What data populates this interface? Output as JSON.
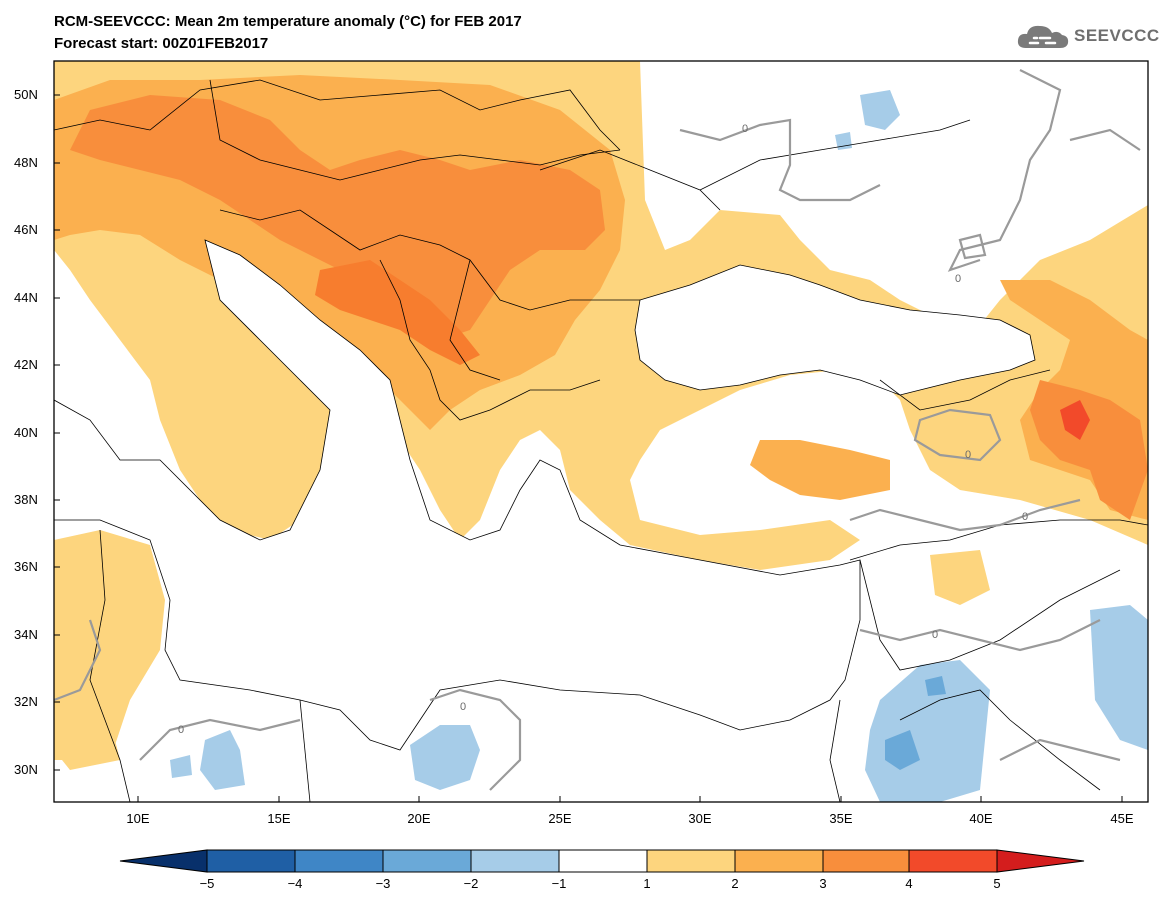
{
  "header": {
    "title": "RCM-SEEVCCC: Mean 2m temperature anomaly (°C) for FEB 2017",
    "subtitle": "Forecast start: 00Z01FEB2017",
    "logo_text": "SEEVCCC",
    "logo_icon": "cloud-icon"
  },
  "map": {
    "lat_labels": [
      "50N",
      "48N",
      "46N",
      "44N",
      "42N",
      "40N",
      "38N",
      "36N",
      "34N",
      "32N",
      "30N"
    ],
    "lon_labels": [
      "10E",
      "15E",
      "20E",
      "25E",
      "30E",
      "35E",
      "40E",
      "45E"
    ],
    "contour_label": "0",
    "region": "Southeastern Europe, Eastern Mediterranean and Middle East",
    "lat_range": [
      29,
      51
    ],
    "lon_range": [
      7,
      46
    ]
  },
  "colorbar": {
    "ticks": [
      "−5",
      "−4",
      "−3",
      "−2",
      "−1",
      "1",
      "2",
      "3",
      "4",
      "5"
    ],
    "colors": [
      "#08306b",
      "#1f5fa5",
      "#3f86c6",
      "#6aa9d8",
      "#a6cce8",
      "#ffffff",
      "#fdd57e",
      "#fbb04f",
      "#f88e3c",
      "#f24a2a",
      "#d41d1d"
    ]
  }
}
